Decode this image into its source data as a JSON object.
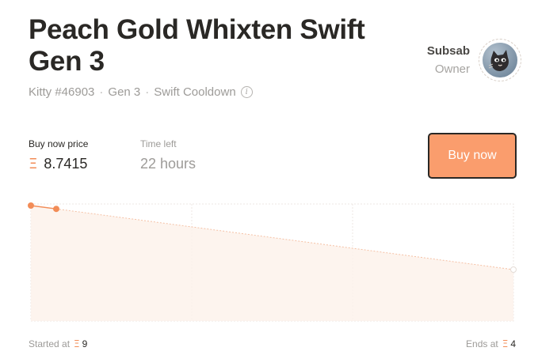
{
  "kitty": {
    "title": "Peach Gold Whixten Swift Gen 3",
    "id_text": "Kitty #46903",
    "gen_text": "Gen 3",
    "cooldown_text": "Swift Cooldown",
    "sep": "·",
    "info_glyph": "i"
  },
  "owner": {
    "name": "Subsab",
    "role": "Owner",
    "avatar_icon": "cat-avatar-icon"
  },
  "sale": {
    "price_label": "Buy now price",
    "eth_symbol": "Ξ",
    "price_value": "8.7415",
    "time_label": "Time left",
    "time_value": "22 hours",
    "buy_label": "Buy now"
  },
  "colors": {
    "accent": "#fa9d6d",
    "accent_dark": "#f28c57",
    "text": "#2a2825",
    "muted": "#9d9b98"
  },
  "footer": {
    "start_label": "Started at",
    "start_value": "9",
    "end_label": "Ends at",
    "end_value": "4"
  },
  "chart_data": {
    "type": "line",
    "start_price": 9,
    "end_price": 4,
    "current_price": 8.7415,
    "ylim": [
      4,
      9
    ],
    "x_fraction_elapsed": 0.052,
    "grid": true
  }
}
